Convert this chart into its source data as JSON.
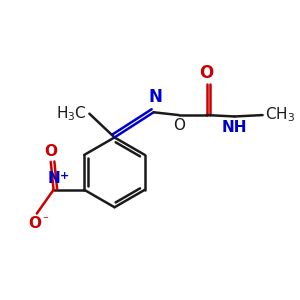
{
  "background_color": "#ffffff",
  "bond_color": "#1a1a1a",
  "nitrogen_color": "#0000cc",
  "oxygen_color": "#cc0000",
  "line_width": 1.8,
  "figsize": [
    3.0,
    3.0
  ],
  "dpi": 100,
  "xlim": [
    0,
    10
  ],
  "ylim": [
    0,
    10
  ]
}
